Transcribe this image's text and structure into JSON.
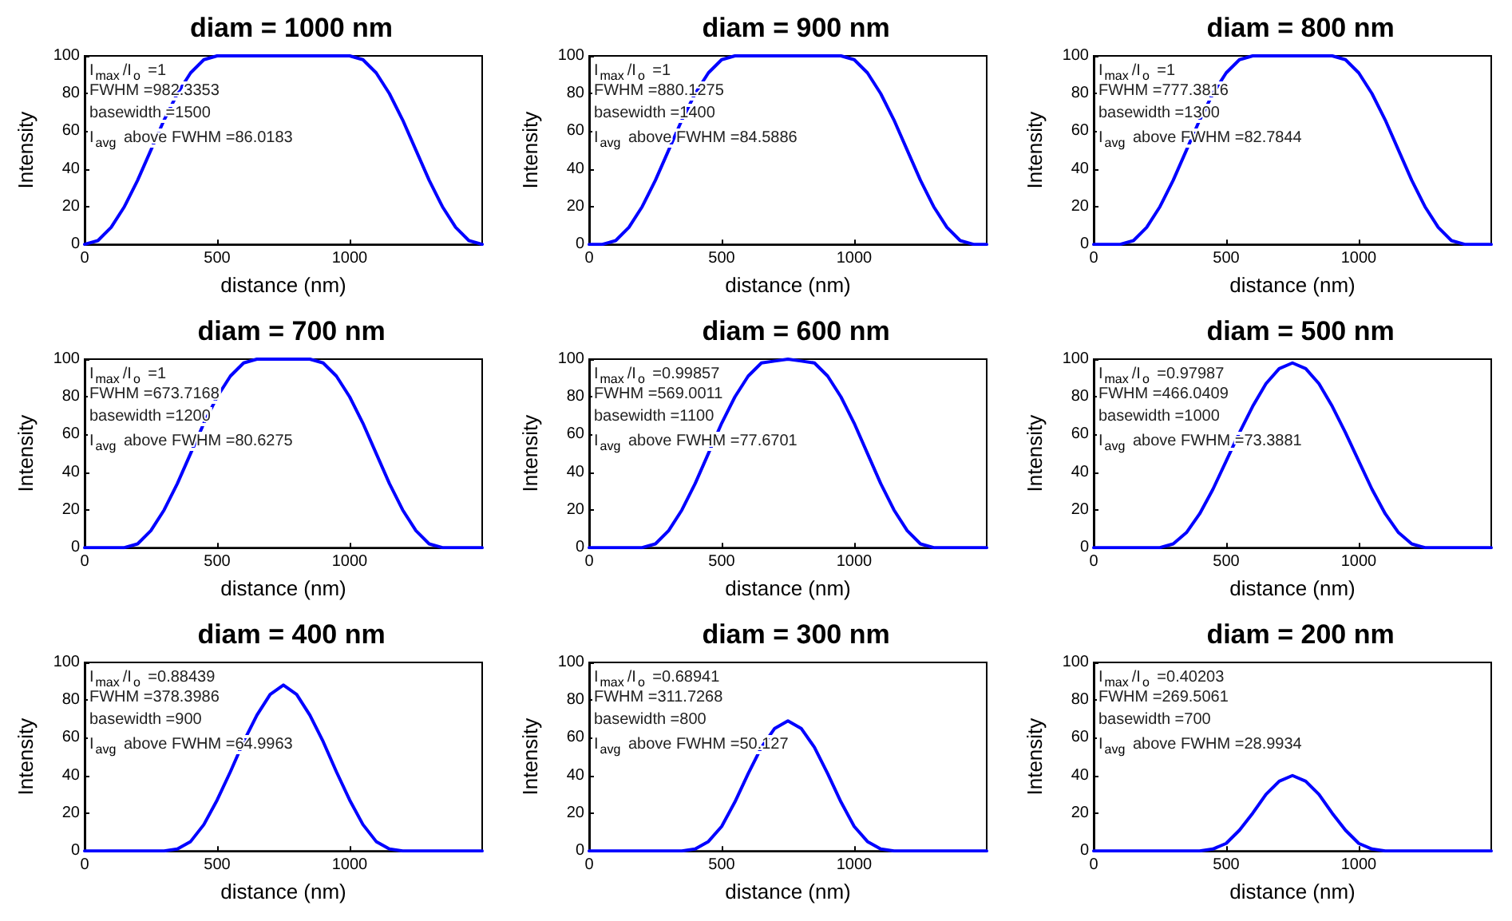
{
  "chart_data": [
    {
      "type": "line",
      "title": "diam = 1000 nm",
      "xlabel": "distance (nm)",
      "ylabel": "Intensity",
      "annotations": [
        "I$_{max}$/I$_{o}$ =1",
        "FWHM =982.3353",
        "basewidth =1500",
        "I$_{avg}$ above FWHM =86.0183"
      ],
      "xlim": [
        0,
        1500
      ],
      "xticks": [
        0,
        500,
        1000
      ],
      "ylim": [
        0,
        100
      ],
      "yticks": [
        0,
        20,
        40,
        60,
        80,
        100
      ],
      "marker": "none",
      "line_style": "solid",
      "x": [
        0,
        50,
        100,
        150,
        200,
        250,
        300,
        350,
        400,
        450,
        500,
        550,
        600,
        650,
        700,
        750,
        800,
        850,
        900,
        950,
        1000,
        1050,
        1100,
        1150,
        1200,
        1250,
        1300,
        1350,
        1400,
        1450,
        1500
      ],
      "series": [
        {
          "color": "#0000ff",
          "values": [
            0,
            2,
            9,
            20,
            34,
            50,
            66,
            80,
            91,
            98,
            100,
            100,
            100,
            100,
            100,
            100,
            100,
            100,
            100,
            100,
            100,
            98,
            91,
            80,
            66,
            50,
            34,
            20,
            9,
            2,
            0
          ]
        }
      ]
    },
    {
      "type": "line",
      "title": "diam = 900 nm",
      "xlabel": "distance (nm)",
      "ylabel": "Intensity",
      "annotations": [
        "I$_{max}$/I$_{o}$ =1",
        "FWHM =880.1275",
        "basewidth =1400",
        "I$_{avg}$ above FWHM =84.5886"
      ],
      "xlim": [
        0,
        1500
      ],
      "xticks": [
        0,
        500,
        1000
      ],
      "ylim": [
        0,
        100
      ],
      "yticks": [
        0,
        20,
        40,
        60,
        80,
        100
      ],
      "marker": "none",
      "line_style": "solid",
      "x": [
        0,
        50,
        100,
        150,
        200,
        250,
        300,
        350,
        400,
        450,
        500,
        550,
        600,
        650,
        700,
        750,
        800,
        850,
        900,
        950,
        1000,
        1050,
        1100,
        1150,
        1200,
        1250,
        1300,
        1350,
        1400,
        1450,
        1500
      ],
      "series": [
        {
          "color": "#0000ff",
          "values": [
            0,
            0,
            2,
            9,
            20,
            34,
            50,
            66,
            80,
            91,
            98,
            100,
            100,
            100,
            100,
            100,
            100,
            100,
            100,
            100,
            98,
            91,
            80,
            66,
            50,
            34,
            20,
            9,
            2,
            0,
            0
          ]
        }
      ]
    },
    {
      "type": "line",
      "title": "diam = 800 nm",
      "xlabel": "distance (nm)",
      "ylabel": "Intensity",
      "annotations": [
        "I$_{max}$/I$_{o}$ =1",
        "FWHM =777.3816",
        "basewidth =1300",
        "I$_{avg}$ above FWHM =82.7844"
      ],
      "xlim": [
        0,
        1500
      ],
      "xticks": [
        0,
        500,
        1000
      ],
      "ylim": [
        0,
        100
      ],
      "yticks": [
        0,
        20,
        40,
        60,
        80,
        100
      ],
      "marker": "none",
      "line_style": "solid",
      "x": [
        0,
        50,
        100,
        150,
        200,
        250,
        300,
        350,
        400,
        450,
        500,
        550,
        600,
        650,
        700,
        750,
        800,
        850,
        900,
        950,
        1000,
        1050,
        1100,
        1150,
        1200,
        1250,
        1300,
        1350,
        1400,
        1450,
        1500
      ],
      "series": [
        {
          "color": "#0000ff",
          "values": [
            0,
            0,
            0,
            2,
            9,
            20,
            34,
            50,
            66,
            80,
            91,
            98,
            100,
            100,
            100,
            100,
            100,
            100,
            100,
            98,
            91,
            80,
            66,
            50,
            34,
            20,
            9,
            2,
            0,
            0,
            0
          ]
        }
      ]
    },
    {
      "type": "line",
      "title": "diam = 700 nm",
      "xlabel": "distance (nm)",
      "ylabel": "Intensity",
      "annotations": [
        "I$_{max}$/I$_{o}$ =1",
        "FWHM =673.7168",
        "basewidth =1200",
        "I$_{avg}$ above FWHM =80.6275"
      ],
      "xlim": [
        0,
        1500
      ],
      "xticks": [
        0,
        500,
        1000
      ],
      "ylim": [
        0,
        100
      ],
      "yticks": [
        0,
        20,
        40,
        60,
        80,
        100
      ],
      "marker": "none",
      "line_style": "solid",
      "x": [
        0,
        50,
        100,
        150,
        200,
        250,
        300,
        350,
        400,
        450,
        500,
        550,
        600,
        650,
        700,
        750,
        800,
        850,
        900,
        950,
        1000,
        1050,
        1100,
        1150,
        1200,
        1250,
        1300,
        1350,
        1400,
        1450,
        1500
      ],
      "series": [
        {
          "color": "#0000ff",
          "values": [
            0,
            0,
            0,
            0,
            2,
            9,
            20,
            34,
            50,
            66,
            80,
            91,
            98,
            100,
            100,
            100,
            100,
            100,
            98,
            91,
            80,
            66,
            50,
            34,
            20,
            9,
            2,
            0,
            0,
            0,
            0
          ]
        }
      ]
    },
    {
      "type": "line",
      "title": "diam = 600 nm",
      "xlabel": "distance (nm)",
      "ylabel": "Intensity",
      "annotations": [
        "I$_{max}$/I$_{o}$ =0.99857",
        "FWHM =569.0011",
        "basewidth =1100",
        "I$_{avg}$ above FWHM =77.6701"
      ],
      "xlim": [
        0,
        1500
      ],
      "xticks": [
        0,
        500,
        1000
      ],
      "ylim": [
        0,
        100
      ],
      "yticks": [
        0,
        20,
        40,
        60,
        80,
        100
      ],
      "marker": "none",
      "line_style": "solid",
      "x": [
        0,
        50,
        100,
        150,
        200,
        250,
        300,
        350,
        400,
        450,
        500,
        550,
        600,
        650,
        700,
        750,
        800,
        850,
        900,
        950,
        1000,
        1050,
        1100,
        1150,
        1200,
        1250,
        1300,
        1350,
        1400,
        1450,
        1500
      ],
      "series": [
        {
          "color": "#0000ff",
          "values": [
            0,
            0,
            0,
            0,
            0,
            2,
            9,
            20,
            34,
            50,
            66,
            80,
            91,
            98,
            99,
            100,
            99,
            98,
            91,
            80,
            66,
            50,
            34,
            20,
            9,
            2,
            0,
            0,
            0,
            0,
            0
          ]
        }
      ]
    },
    {
      "type": "line",
      "title": "diam = 500 nm",
      "xlabel": "distance (nm)",
      "ylabel": "Intensity",
      "annotations": [
        "I$_{max}$/I$_{o}$ =0.97987",
        "FWHM =466.0409",
        "basewidth =1000",
        "I$_{avg}$ above FWHM =73.3881"
      ],
      "xlim": [
        0,
        1500
      ],
      "xticks": [
        0,
        500,
        1000
      ],
      "ylim": [
        0,
        100
      ],
      "yticks": [
        0,
        20,
        40,
        60,
        80,
        100
      ],
      "marker": "none",
      "line_style": "solid",
      "x": [
        0,
        50,
        100,
        150,
        200,
        250,
        300,
        350,
        400,
        450,
        500,
        550,
        600,
        650,
        700,
        750,
        800,
        850,
        900,
        950,
        1000,
        1050,
        1100,
        1150,
        1200,
        1250,
        1300,
        1350,
        1400,
        1450,
        1500
      ],
      "series": [
        {
          "color": "#0000ff",
          "values": [
            0,
            0,
            0,
            0,
            0,
            0,
            2,
            8,
            18,
            31,
            46,
            61,
            75,
            87,
            95,
            98,
            95,
            87,
            75,
            61,
            46,
            31,
            18,
            8,
            2,
            0,
            0,
            0,
            0,
            0,
            0
          ]
        }
      ]
    },
    {
      "type": "line",
      "title": "diam = 400 nm",
      "xlabel": "distance (nm)",
      "ylabel": "Intensity",
      "annotations": [
        "I$_{max}$/I$_{o}$ =0.88439",
        "FWHM =378.3986",
        "basewidth =900",
        "I$_{avg}$ above FWHM =64.9963"
      ],
      "xlim": [
        0,
        1500
      ],
      "xticks": [
        0,
        500,
        1000
      ],
      "ylim": [
        0,
        100
      ],
      "yticks": [
        0,
        20,
        40,
        60,
        80,
        100
      ],
      "marker": "none",
      "line_style": "solid",
      "x": [
        0,
        50,
        100,
        150,
        200,
        250,
        300,
        350,
        400,
        450,
        500,
        550,
        600,
        650,
        700,
        750,
        800,
        850,
        900,
        950,
        1000,
        1050,
        1100,
        1150,
        1200,
        1250,
        1300,
        1350,
        1400,
        1450,
        1500
      ],
      "series": [
        {
          "color": "#0000ff",
          "values": [
            0,
            0,
            0,
            0,
            0,
            0,
            0,
            1,
            5,
            14,
            27,
            42,
            58,
            72,
            83,
            88,
            83,
            72,
            58,
            42,
            27,
            14,
            5,
            1,
            0,
            0,
            0,
            0,
            0,
            0,
            0
          ]
        }
      ]
    },
    {
      "type": "line",
      "title": "diam = 300 nm",
      "xlabel": "distance (nm)",
      "ylabel": "Intensity",
      "annotations": [
        "I$_{max}$/I$_{o}$ =0.68941",
        "FWHM =311.7268",
        "basewidth =800",
        "I$_{avg}$ above FWHM =50.127"
      ],
      "xlim": [
        0,
        1500
      ],
      "xticks": [
        0,
        500,
        1000
      ],
      "ylim": [
        0,
        100
      ],
      "yticks": [
        0,
        20,
        40,
        60,
        80,
        100
      ],
      "marker": "none",
      "line_style": "solid",
      "x": [
        0,
        50,
        100,
        150,
        200,
        250,
        300,
        350,
        400,
        450,
        500,
        550,
        600,
        650,
        700,
        750,
        800,
        850,
        900,
        950,
        1000,
        1050,
        1100,
        1150,
        1200,
        1250,
        1300,
        1350,
        1400,
        1450,
        1500
      ],
      "series": [
        {
          "color": "#0000ff",
          "values": [
            0,
            0,
            0,
            0,
            0,
            0,
            0,
            0,
            1,
            5,
            13,
            26,
            41,
            55,
            65,
            69,
            65,
            55,
            41,
            26,
            13,
            5,
            1,
            0,
            0,
            0,
            0,
            0,
            0,
            0,
            0
          ]
        }
      ]
    },
    {
      "type": "line",
      "title": "diam = 200 nm",
      "xlabel": "distance (nm)",
      "ylabel": "Intensity",
      "annotations": [
        "I$_{max}$/I$_{o}$ =0.40203",
        "FWHM =269.5061",
        "basewidth =700",
        "I$_{avg}$ above FWHM =28.9934"
      ],
      "xlim": [
        0,
        1500
      ],
      "xticks": [
        0,
        500,
        1000
      ],
      "ylim": [
        0,
        100
      ],
      "yticks": [
        0,
        20,
        40,
        60,
        80,
        100
      ],
      "marker": "none",
      "line_style": "solid",
      "x": [
        0,
        50,
        100,
        150,
        200,
        250,
        300,
        350,
        400,
        450,
        500,
        550,
        600,
        650,
        700,
        750,
        800,
        850,
        900,
        950,
        1000,
        1050,
        1100,
        1150,
        1200,
        1250,
        1300,
        1350,
        1400,
        1450,
        1500
      ],
      "series": [
        {
          "color": "#0000ff",
          "values": [
            0,
            0,
            0,
            0,
            0,
            0,
            0,
            0,
            0,
            1,
            4,
            11,
            20,
            30,
            37,
            40,
            37,
            30,
            20,
            11,
            4,
            1,
            0,
            0,
            0,
            0,
            0,
            0,
            0,
            0,
            0
          ]
        }
      ]
    }
  ]
}
